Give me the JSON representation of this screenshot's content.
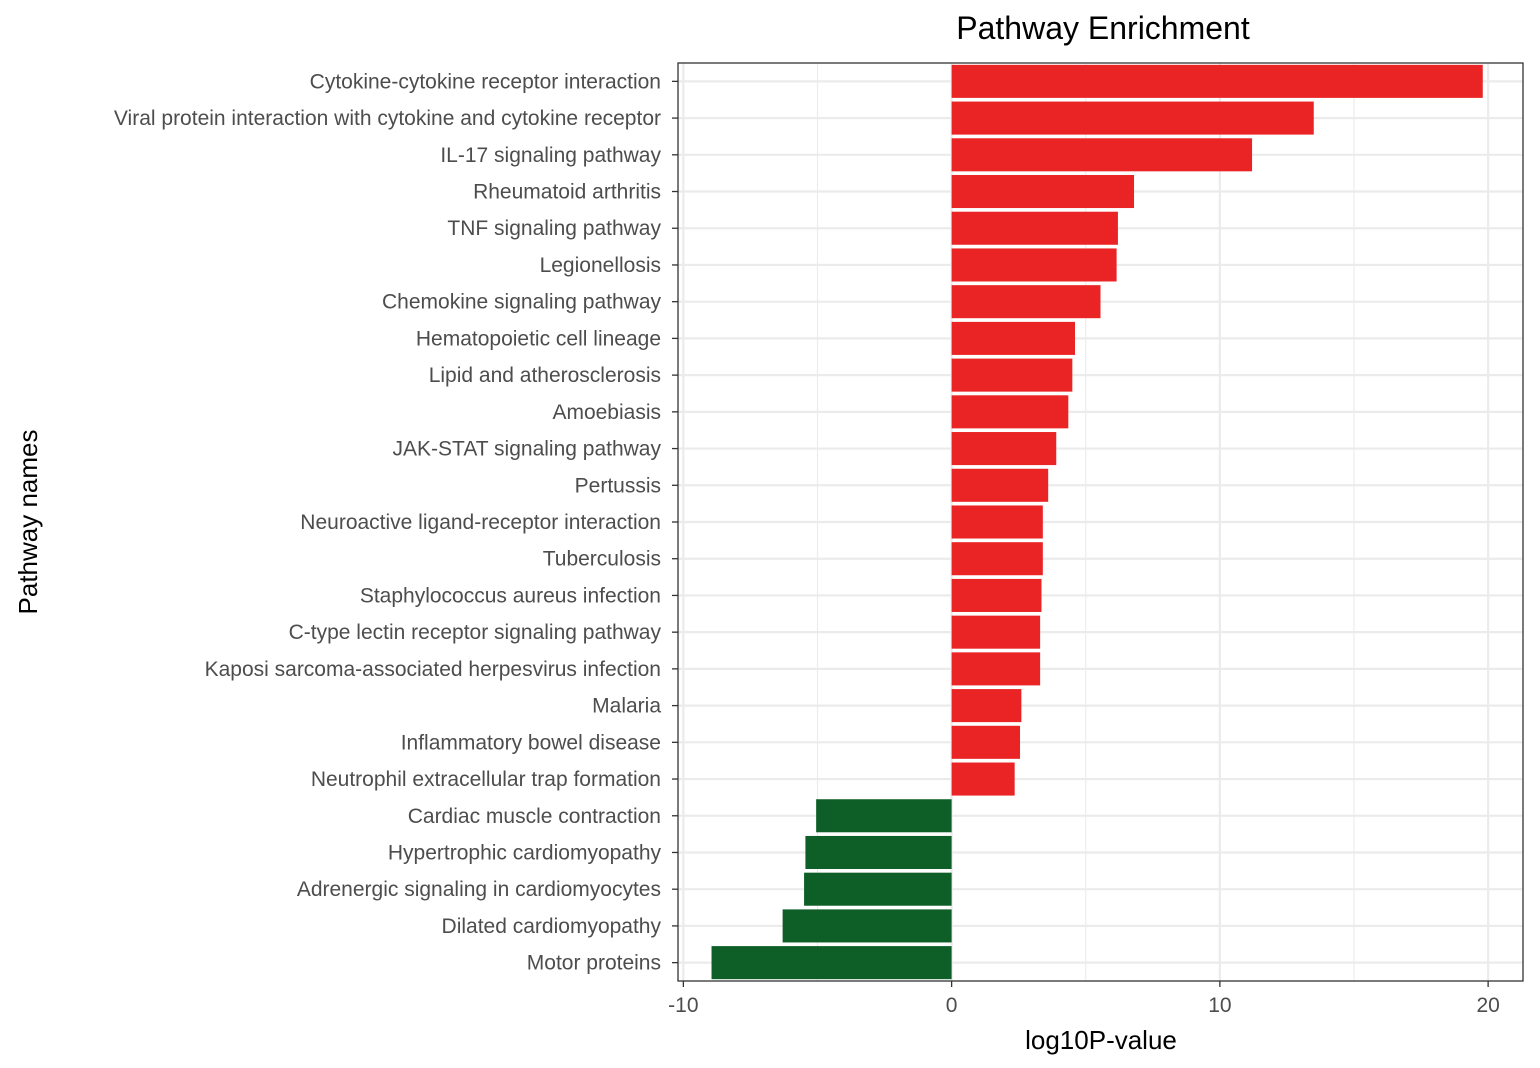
{
  "chart_data": {
    "type": "bar",
    "orientation": "horizontal",
    "title": "Pathway Enrichment",
    "xlabel": "log10P-value",
    "ylabel": "Pathway names",
    "xlim": [
      -10.2,
      21.3
    ],
    "xticks": [
      -10,
      0,
      10,
      20
    ],
    "xtick_labels": [
      "-10",
      "0",
      "10",
      "20"
    ],
    "grid": true,
    "legend": "none",
    "colors": {
      "positive": "#ea2424",
      "negative": "#0e5e27",
      "grid": "#ebebeb",
      "border": "#333333"
    },
    "categories": [
      "Cytokine-cytokine receptor interaction",
      "Viral protein interaction with cytokine and cytokine receptor",
      "IL-17 signaling pathway",
      "Rheumatoid arthritis",
      "TNF signaling pathway",
      "Legionellosis",
      "Chemokine signaling pathway",
      "Hematopoietic cell lineage",
      "Lipid and atherosclerosis",
      "Amoebiasis",
      "JAK-STAT signaling pathway",
      "Pertussis",
      "Neuroactive ligand-receptor interaction",
      "Tuberculosis",
      "Staphylococcus aureus infection",
      "C-type lectin receptor signaling pathway",
      "Kaposi sarcoma-associated herpesvirus infection",
      "Malaria",
      "Inflammatory bowel disease",
      "Neutrophil extracellular trap formation",
      "Cardiac muscle contraction",
      "Hypertrophic cardiomyopathy",
      "Adrenergic signaling in cardiomyocytes",
      "Dilated cardiomyopathy",
      "Motor proteins"
    ],
    "values": [
      19.8,
      13.5,
      11.2,
      6.8,
      6.2,
      6.15,
      5.55,
      4.6,
      4.5,
      4.35,
      3.9,
      3.6,
      3.4,
      3.4,
      3.35,
      3.3,
      3.3,
      2.6,
      2.55,
      2.35,
      -5.05,
      -5.45,
      -5.5,
      -6.3,
      -8.95
    ]
  }
}
